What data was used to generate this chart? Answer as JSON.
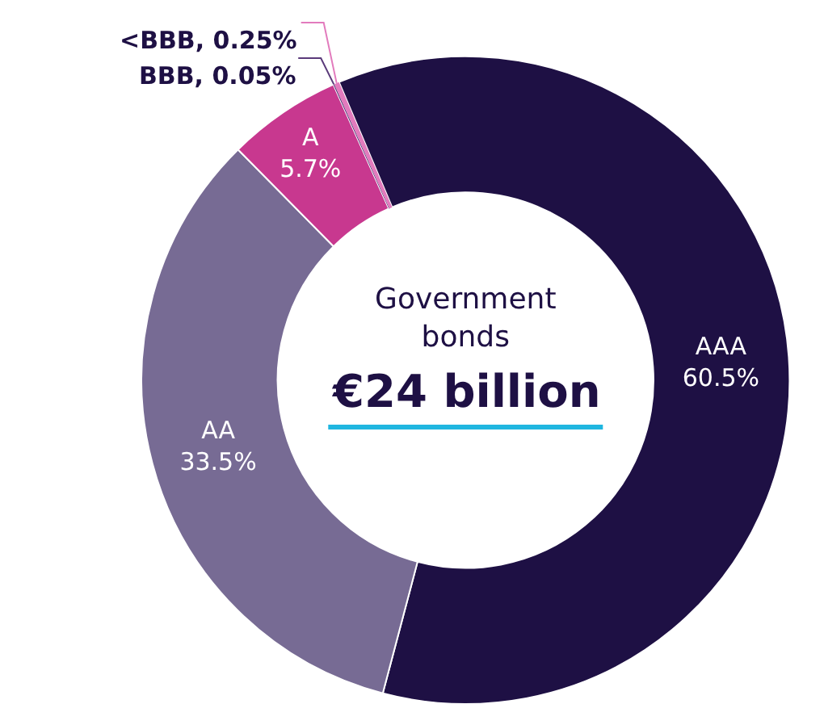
{
  "chart_data": {
    "type": "donut",
    "categories": [
      "AAA",
      "AA",
      "A",
      "BBB",
      "<BBB"
    ],
    "values": [
      60.5,
      33.5,
      5.7,
      0.05,
      0.25
    ],
    "value_labels": [
      "60.5%",
      "33.5%",
      "5.7%",
      "0.05%",
      "0.25%"
    ],
    "colors": [
      "#1e1044",
      "#776b94",
      "#c8388f",
      "#5a3a7a",
      "#e27bbd"
    ],
    "annotations": [
      "Government bonds",
      "€24 billion"
    ]
  }
}
